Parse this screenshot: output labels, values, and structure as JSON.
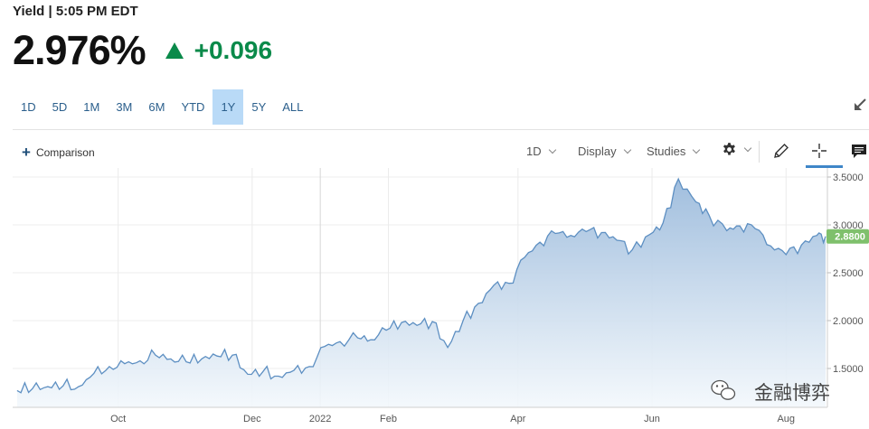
{
  "header": {
    "line": "Yield | 5:05 PM EDT"
  },
  "quote": {
    "price": "2.976%",
    "change": "+0.096",
    "change_color": "#0a8a4a"
  },
  "ranges": {
    "items": [
      "1D",
      "5D",
      "1M",
      "3M",
      "6M",
      "YTD",
      "1Y",
      "5Y",
      "ALL"
    ],
    "active": "1Y"
  },
  "toolbar": {
    "comparison_label": "Comparison",
    "interval_label": "1D",
    "display_label": "Display",
    "studies_label": "Studies",
    "icons": [
      "gear-icon",
      "pencil-icon",
      "crosshair-icon",
      "comment-icon",
      "expand-icon"
    ]
  },
  "watermark": {
    "text": "金融博弈",
    "icon": "wechat-icon"
  },
  "chart_data": {
    "type": "area",
    "x_tick_labels": [
      "Oct",
      "Dec",
      "2022",
      "Feb",
      "Apr",
      "Jun",
      "Aug"
    ],
    "y_tick_labels": [
      "3.5000",
      "3.0000",
      "2.5000",
      "2.0000",
      "1.5000"
    ],
    "ylim": [
      1.2,
      3.5
    ],
    "grid": true,
    "last_value_label": "2.8800",
    "last_value": 2.88,
    "accent_color": "#7fc06c",
    "line_color": "#5d8fc2",
    "series": [
      {
        "x": [
          "2021-08-16",
          "2021-08-23",
          "2021-08-30",
          "2021-09-06",
          "2021-09-13",
          "2021-09-20",
          "2021-09-27",
          "2021-10-04",
          "2021-10-11",
          "2021-10-18",
          "2021-10-25",
          "2021-11-01",
          "2021-11-08",
          "2021-11-15",
          "2021-11-22",
          "2021-11-29",
          "2021-12-06",
          "2021-12-13",
          "2021-12-20",
          "2021-12-27",
          "2022-01-03",
          "2022-01-10",
          "2022-01-18",
          "2022-01-24",
          "2022-01-31",
          "2022-02-07",
          "2022-02-14",
          "2022-02-21",
          "2022-02-28",
          "2022-03-07",
          "2022-03-14",
          "2022-03-21",
          "2022-03-28",
          "2022-04-04",
          "2022-04-11",
          "2022-04-18",
          "2022-04-25",
          "2022-05-02",
          "2022-05-09",
          "2022-05-16",
          "2022-05-23",
          "2022-05-31",
          "2022-06-06",
          "2022-06-13",
          "2022-06-21",
          "2022-06-27",
          "2022-07-05",
          "2022-07-11",
          "2022-07-18",
          "2022-07-25",
          "2022-08-01",
          "2022-08-08",
          "2022-08-15",
          "2022-08-19"
        ],
        "values": [
          1.27,
          1.29,
          1.31,
          1.32,
          1.31,
          1.45,
          1.52,
          1.55,
          1.58,
          1.64,
          1.6,
          1.57,
          1.6,
          1.63,
          1.64,
          1.44,
          1.47,
          1.42,
          1.48,
          1.52,
          1.73,
          1.78,
          1.82,
          1.8,
          1.9,
          1.98,
          1.95,
          1.99,
          1.72,
          2.0,
          2.18,
          2.37,
          2.39,
          2.66,
          2.82,
          2.91,
          2.89,
          2.93,
          2.92,
          2.84,
          2.74,
          2.9,
          3.02,
          3.48,
          3.24,
          3.1,
          2.94,
          2.99,
          2.96,
          2.78,
          2.69,
          2.79,
          2.89,
          2.88
        ]
      }
    ]
  }
}
